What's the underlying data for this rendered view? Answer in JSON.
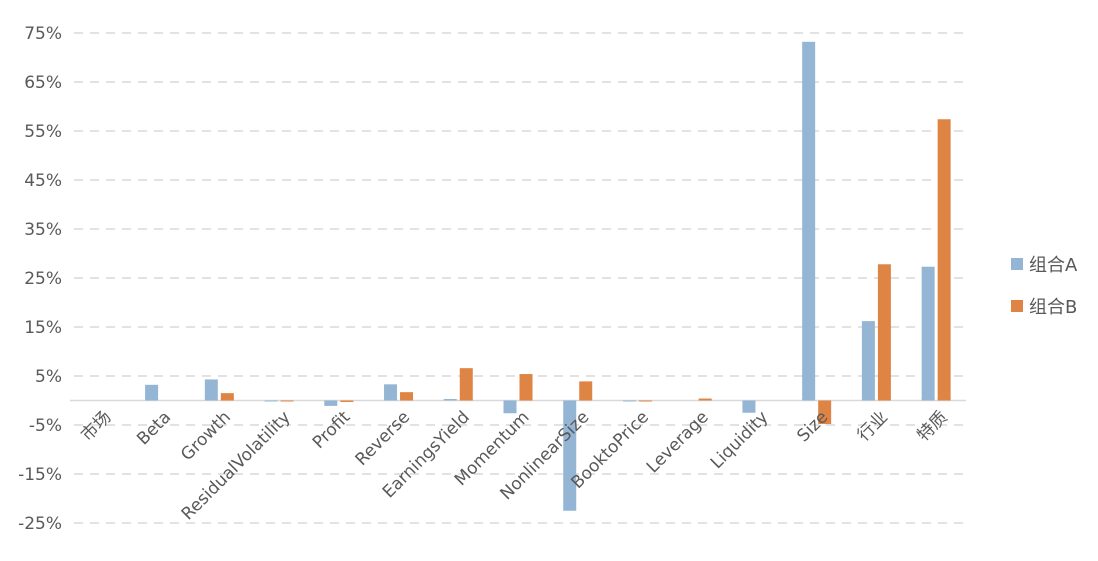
{
  "chart_data": {
    "type": "bar",
    "categories": [
      "市场",
      "Beta",
      "Growth",
      "ResidualVolatility",
      "Profit",
      "Reverse",
      "EarningsYield",
      "Momentum",
      "NonlinearSize",
      "BooktoPrice",
      "Leverage",
      "Liquidity",
      "Size",
      "行业",
      "特质"
    ],
    "series": [
      {
        "name": "组合A",
        "color": "#94B5D3",
        "values": [
          0,
          3.2,
          4.3,
          -0.1,
          -1.1,
          3.3,
          0.3,
          -2.6,
          -22.5,
          -0.1,
          0,
          -2.5,
          73.2,
          16.2,
          27.3
        ]
      },
      {
        "name": "组合B",
        "color": "#DE8444",
        "values": [
          0,
          0,
          1.5,
          -0.1,
          -0.3,
          1.7,
          6.6,
          5.4,
          3.9,
          -0.2,
          0.4,
          0,
          -4.8,
          27.8,
          57.4
        ]
      }
    ],
    "y_ticks": [
      "75%",
      "65%",
      "55%",
      "45%",
      "35%",
      "25%",
      "15%",
      "5%",
      "-5%",
      "-15%",
      "-25%"
    ],
    "ylim": [
      -25,
      75
    ],
    "grid": true,
    "legend_position": "right"
  }
}
